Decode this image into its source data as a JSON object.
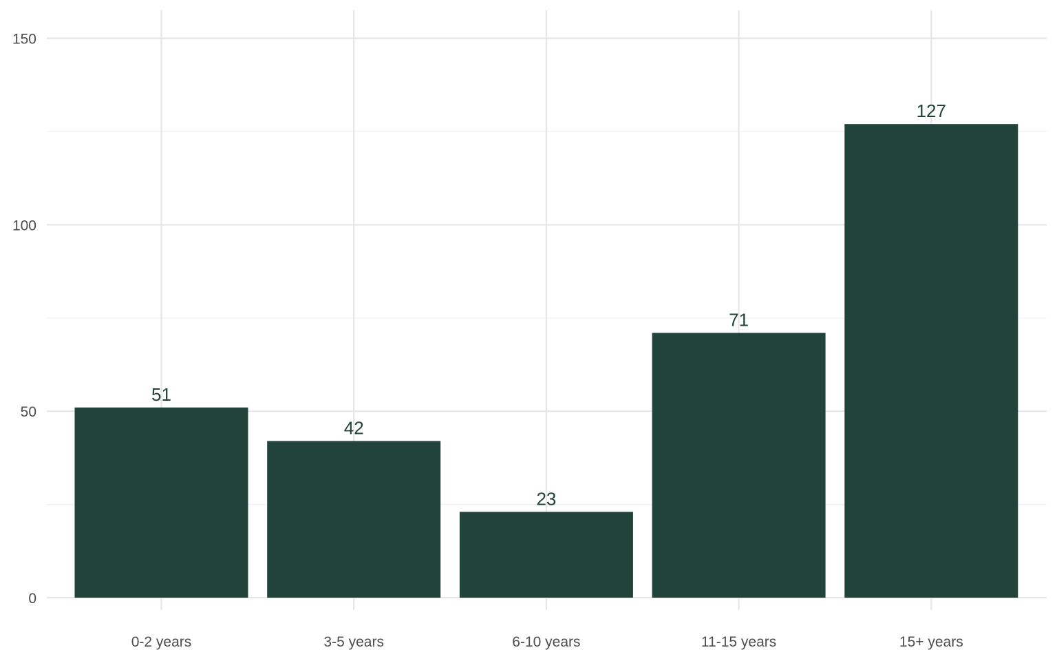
{
  "chart_data": {
    "type": "bar",
    "title": "",
    "xlabel": "",
    "ylabel": "",
    "categories": [
      "0-2 years",
      "3-5 years",
      "6-10 years",
      "11-15 years",
      "15+ years"
    ],
    "values": [
      51,
      42,
      23,
      71,
      127
    ],
    "data_labels": [
      "51",
      "42",
      "23",
      "71",
      "127"
    ],
    "ylim": [
      0,
      157.5
    ],
    "y_ticks": [
      0,
      50,
      100,
      150
    ],
    "y_tick_labels": [
      "0",
      "50",
      "100",
      "150"
    ],
    "y_minor_ticks": [
      25,
      75,
      125
    ],
    "grid": true,
    "legend": "none",
    "colors": {
      "bar": "#22433a",
      "label": "#22433a",
      "grid_major": "#e6e6e6",
      "grid_minor": "#efefef",
      "tick_text": "#4d4d4d"
    }
  }
}
